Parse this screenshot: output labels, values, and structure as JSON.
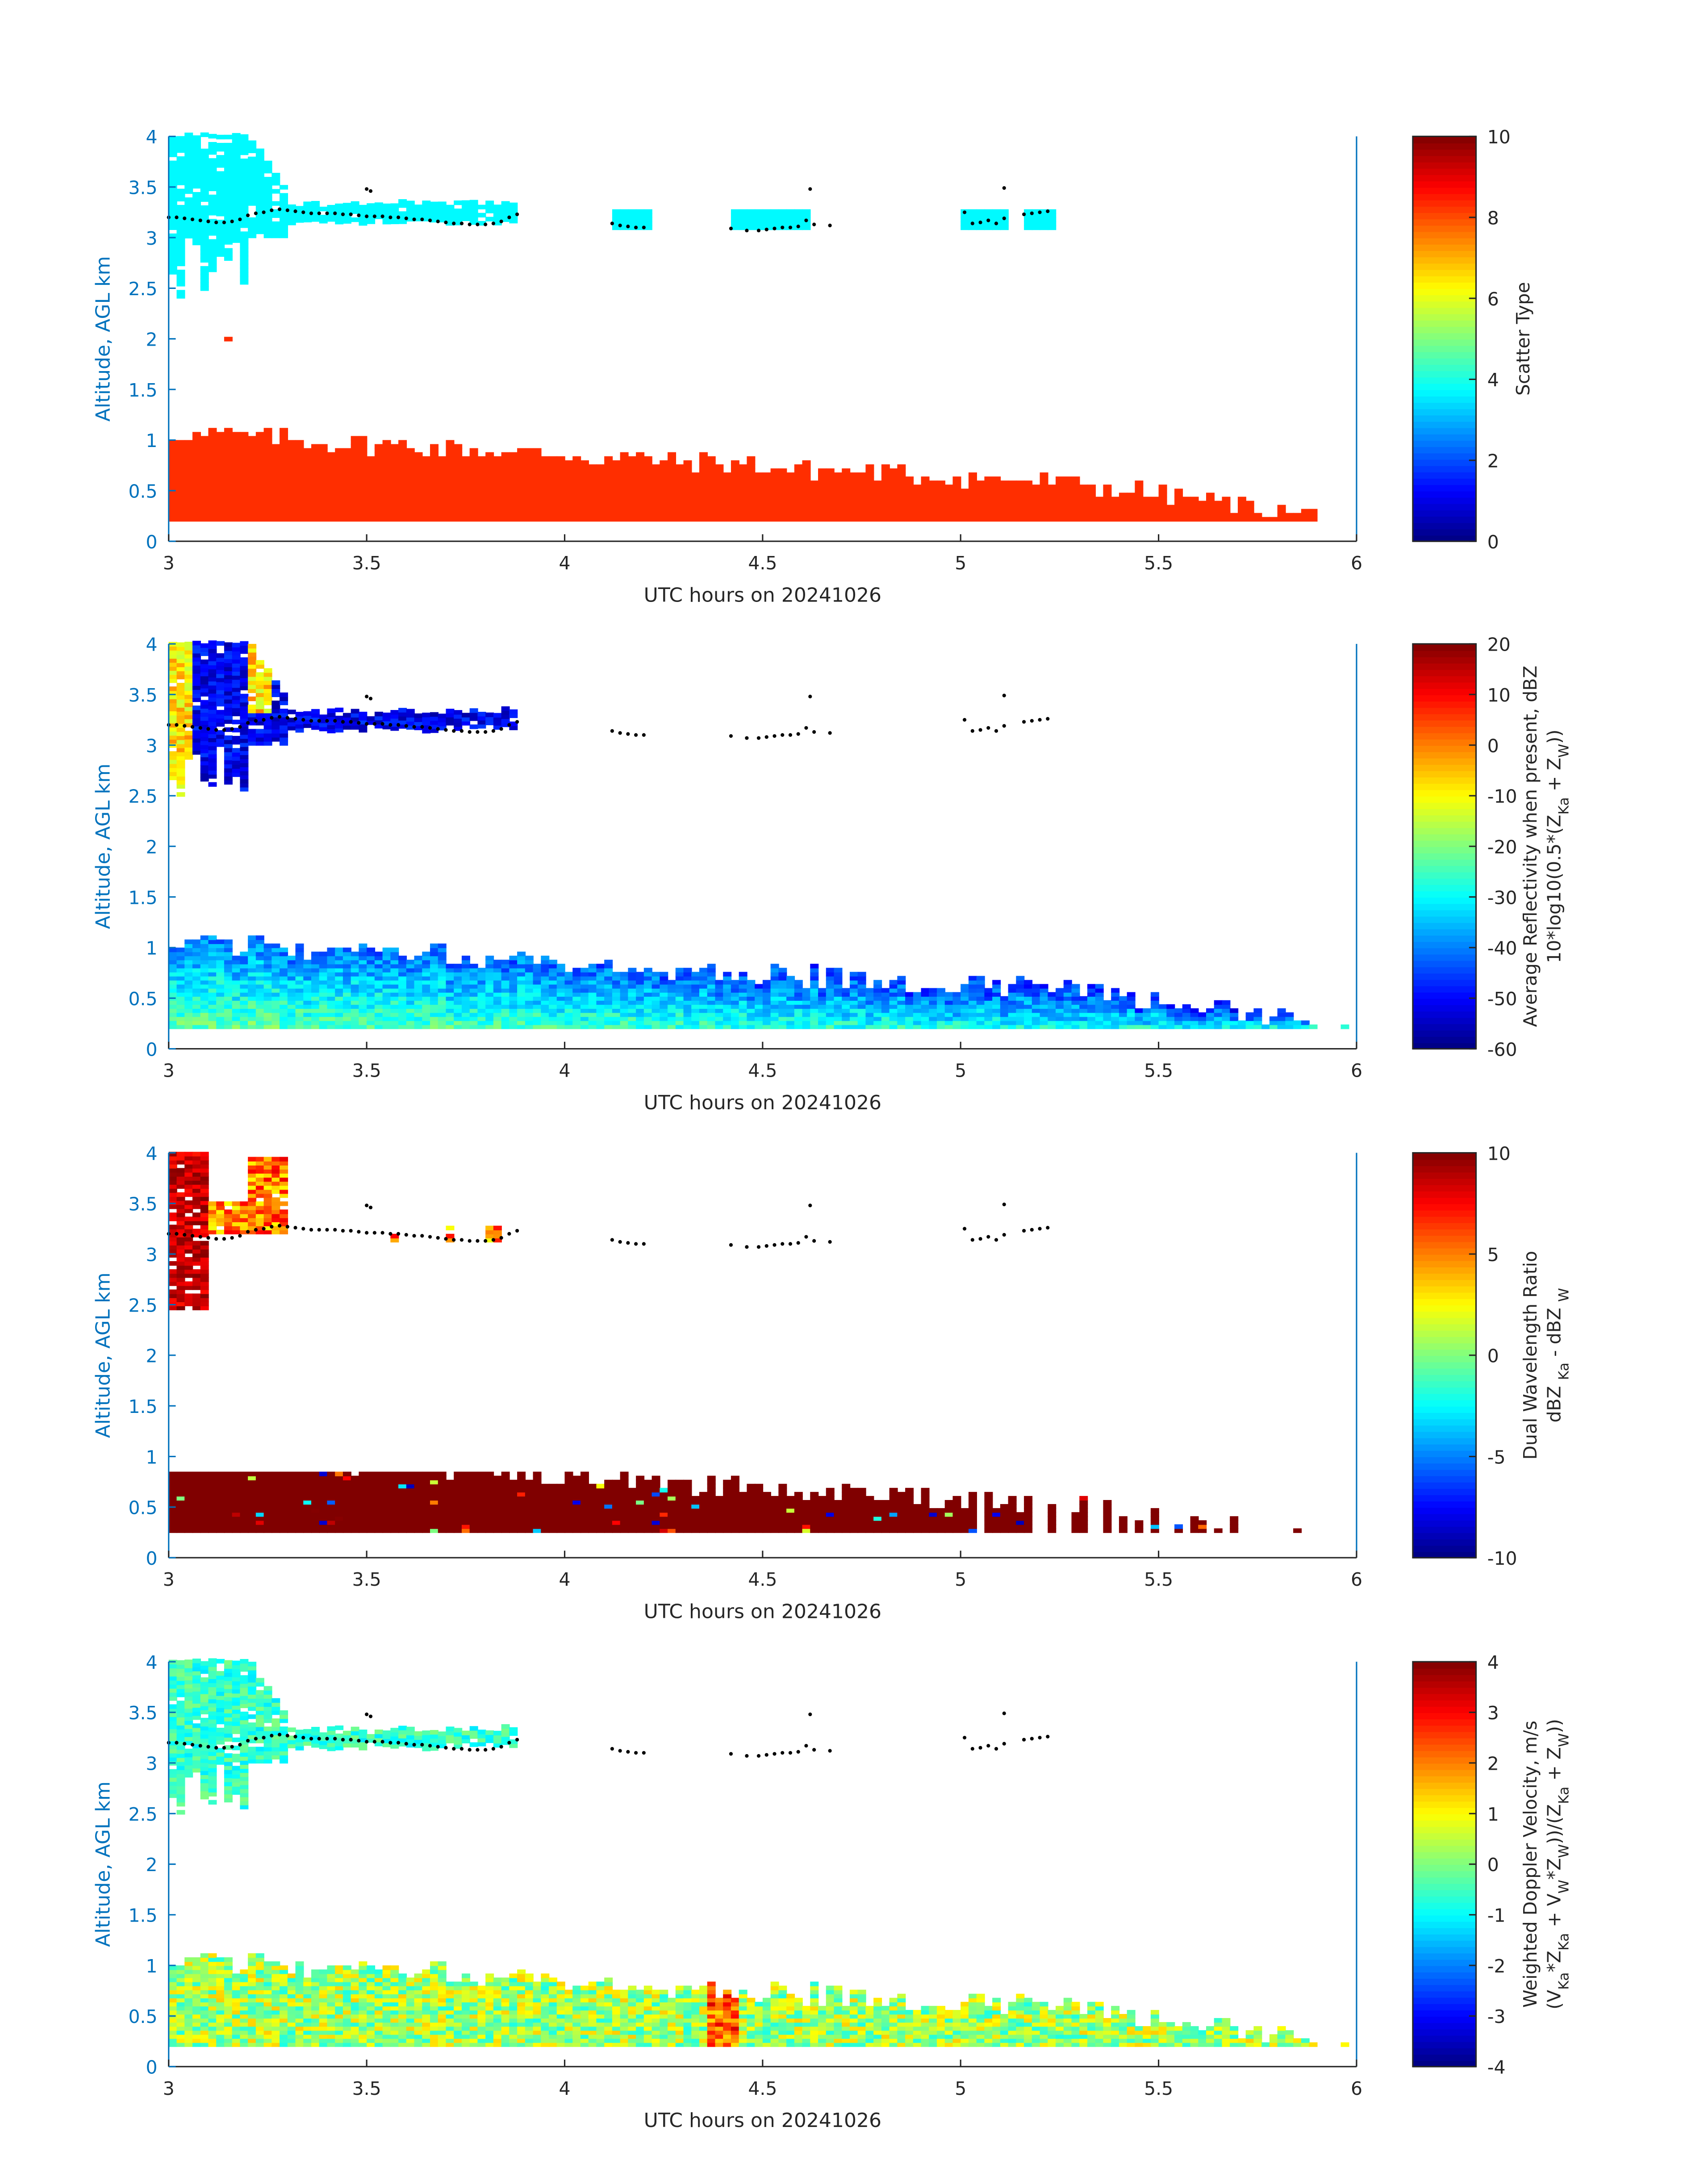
{
  "chart_data": [
    {
      "type": "heatmap",
      "title": "",
      "xlabel": "UTC hours on 20241026",
      "ylabel": "Altitude, AGL km",
      "xlim": [
        3,
        6
      ],
      "ylim": [
        0,
        4
      ],
      "xticks": [
        "3",
        "3.5",
        "4",
        "4.5",
        "5",
        "5.5",
        "6"
      ],
      "yticks": [
        "0",
        "0.5",
        "1",
        "1.5",
        "2",
        "2.5",
        "3",
        "3.5",
        "4"
      ],
      "colorbar": {
        "range": [
          0,
          10
        ],
        "ticks": [
          "0",
          "2",
          "4",
          "6",
          "8",
          "10"
        ],
        "label_lines": [
          [
            {
              "t": "Scatter Type"
            }
          ]
        ]
      },
      "field": "scatter_type",
      "layers": {
        "upper_cloud_value": 3.7,
        "lower_cloud_value": 8.3,
        "isolated_point": {
          "x": 3.14,
          "y": 2.0,
          "value": 8.3
        }
      }
    },
    {
      "type": "heatmap",
      "xlabel": "UTC hours on 20241026",
      "ylabel": "Altitude, AGL km",
      "xlim": [
        3,
        6
      ],
      "ylim": [
        0,
        4
      ],
      "xticks": [
        "3",
        "3.5",
        "4",
        "4.5",
        "5",
        "5.5",
        "6"
      ],
      "yticks": [
        "0",
        "0.5",
        "1",
        "1.5",
        "2",
        "2.5",
        "3",
        "3.5",
        "4"
      ],
      "colorbar": {
        "range": [
          -60,
          20
        ],
        "ticks": [
          "-60",
          "-50",
          "-40",
          "-30",
          "-20",
          "-10",
          "0",
          "10",
          "20"
        ],
        "label_lines": [
          [
            {
              "t": "Average Reflectivity when present, dBZ"
            }
          ],
          [
            {
              "t": "10*log10(0.5*(Z"
            },
            {
              "t": "Ka",
              "sub": true
            },
            {
              "t": " + Z"
            },
            {
              "t": "W",
              "sub": true
            },
            {
              "t": "))"
            }
          ]
        ]
      },
      "field": "average_reflectivity_dBZ",
      "layers": {
        "upper_cloud_core": 3,
        "upper_cloud_band": -45,
        "lower_cloud_base": -22,
        "lower_cloud_top": -42
      }
    },
    {
      "type": "heatmap",
      "xlabel": "UTC hours on 20241026",
      "ylabel": "Altitude, AGL km",
      "xlim": [
        3,
        6
      ],
      "ylim": [
        0,
        4
      ],
      "xticks": [
        "3",
        "3.5",
        "4",
        "4.5",
        "5",
        "5.5",
        "6"
      ],
      "yticks": [
        "0",
        "0.5",
        "1",
        "1.5",
        "2",
        "2.5",
        "3",
        "3.5",
        "4"
      ],
      "colorbar": {
        "range": [
          -10,
          10
        ],
        "ticks": [
          "-10",
          "-5",
          "0",
          "5",
          "10"
        ],
        "label_lines": [
          [
            {
              "t": "Dual Wavelength Ratio"
            }
          ],
          [
            {
              "t": "dBZ "
            },
            {
              "t": "Ka",
              "sub": true
            },
            {
              "t": " - dBZ "
            },
            {
              "t": "W",
              "sub": true
            }
          ]
        ]
      },
      "field": "dual_wavelength_ratio",
      "layers": {
        "upper_cloud_core": 7,
        "lower_cloud": 10
      }
    },
    {
      "type": "heatmap",
      "xlabel": "UTC hours on 20241026",
      "ylabel": "Altitude, AGL km",
      "xlim": [
        3,
        6
      ],
      "ylim": [
        0,
        4
      ],
      "xticks": [
        "3",
        "3.5",
        "4",
        "4.5",
        "5",
        "5.5",
        "6"
      ],
      "yticks": [
        "0",
        "0.5",
        "1",
        "1.5",
        "2",
        "2.5",
        "3",
        "3.5",
        "4"
      ],
      "colorbar": {
        "range": [
          -4,
          4
        ],
        "ticks": [
          "-4",
          "-3",
          "-2",
          "-1",
          "0",
          "1",
          "2",
          "3",
          "4"
        ],
        "label_lines": [
          [
            {
              "t": "Weighted Doppler Velocity, m/s"
            }
          ],
          [
            {
              "t": "(V"
            },
            {
              "t": "Ka",
              "sub": true
            },
            {
              "t": "*Z"
            },
            {
              "t": "Ka",
              "sub": true
            },
            {
              "t": " + V"
            },
            {
              "t": "W",
              "sub": true
            },
            {
              "t": "*Z"
            },
            {
              "t": "W",
              "sub": true
            },
            {
              "t": "))/(Z"
            },
            {
              "t": "Ka",
              "sub": true
            },
            {
              "t": " + Z"
            },
            {
              "t": "W",
              "sub": true
            },
            {
              "t": "))"
            }
          ]
        ]
      },
      "field": "weighted_doppler_velocity",
      "layers": {
        "upper_cloud": -0.5,
        "lower_cloud": 0.3
      }
    }
  ],
  "overlay_points": {
    "name": "black dot markers (all panels)",
    "x": [
      3.0,
      3.02,
      3.04,
      3.06,
      3.08,
      3.1,
      3.12,
      3.14,
      3.16,
      3.18,
      3.2,
      3.22,
      3.24,
      3.26,
      3.28,
      3.3,
      3.32,
      3.34,
      3.36,
      3.38,
      3.4,
      3.42,
      3.44,
      3.46,
      3.48,
      3.5,
      3.52,
      3.54,
      3.56,
      3.58,
      3.6,
      3.62,
      3.64,
      3.66,
      3.68,
      3.7,
      3.72,
      3.74,
      3.76,
      3.78,
      3.8,
      3.82,
      3.84,
      3.86,
      3.88,
      3.5,
      3.51,
      4.12,
      4.14,
      4.16,
      4.18,
      4.2,
      4.42,
      4.46,
      4.49,
      4.51,
      4.53,
      4.55,
      4.57,
      4.59,
      4.61,
      4.63,
      4.62,
      4.67,
      5.01,
      5.03,
      5.05,
      5.07,
      5.09,
      5.11,
      5.16,
      5.18,
      5.2,
      5.22,
      5.11
    ],
    "y": [
      3.2,
      3.2,
      3.19,
      3.18,
      3.17,
      3.16,
      3.15,
      3.15,
      3.16,
      3.18,
      3.22,
      3.24,
      3.25,
      3.27,
      3.28,
      3.27,
      3.26,
      3.25,
      3.24,
      3.24,
      3.24,
      3.24,
      3.23,
      3.23,
      3.22,
      3.21,
      3.21,
      3.21,
      3.2,
      3.2,
      3.19,
      3.18,
      3.18,
      3.17,
      3.16,
      3.15,
      3.14,
      3.14,
      3.13,
      3.13,
      3.13,
      3.14,
      3.16,
      3.2,
      3.23,
      3.48,
      3.46,
      3.14,
      3.12,
      3.11,
      3.1,
      3.1,
      3.09,
      3.07,
      3.07,
      3.08,
      3.09,
      3.1,
      3.1,
      3.11,
      3.17,
      3.13,
      3.48,
      3.12,
      3.25,
      3.14,
      3.15,
      3.17,
      3.14,
      3.19,
      3.23,
      3.24,
      3.25,
      3.26,
      3.49
    ]
  }
}
